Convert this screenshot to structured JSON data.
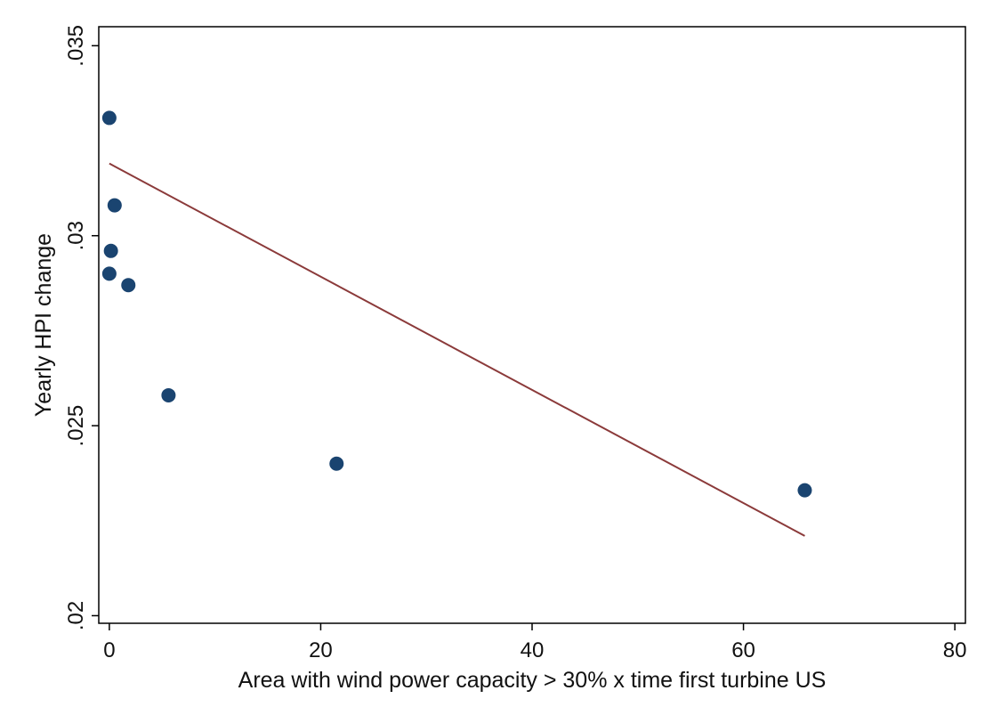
{
  "chart_data": {
    "type": "scatter",
    "title": "",
    "xlabel": "Area with wind power capacity > 30% x time first turbine US",
    "ylabel": "Yearly HPI change",
    "xlim": [
      -1,
      81
    ],
    "ylim": [
      0.0198,
      0.0355
    ],
    "x_ticks": [
      0,
      20,
      40,
      60,
      80
    ],
    "x_tick_labels": [
      "0",
      "20",
      "40",
      "60",
      "80"
    ],
    "y_ticks": [
      0.02,
      0.025,
      0.03,
      0.035
    ],
    "y_tick_labels": [
      ".02",
      ".025",
      ".03",
      ".035"
    ],
    "grid": false,
    "legend": "none",
    "series": [
      {
        "type": "scatter",
        "color": "#1a4470",
        "points": [
          {
            "x": 0.0,
            "y": 0.0331
          },
          {
            "x": 0.5,
            "y": 0.0308
          },
          {
            "x": 0.15,
            "y": 0.0296
          },
          {
            "x": 0.0,
            "y": 0.029
          },
          {
            "x": 1.8,
            "y": 0.0287
          },
          {
            "x": 5.6,
            "y": 0.0258
          },
          {
            "x": 21.5,
            "y": 0.024
          },
          {
            "x": 65.8,
            "y": 0.0233
          }
        ]
      },
      {
        "type": "line",
        "color": "#8b3a3a",
        "points": [
          {
            "x": 0.0,
            "y": 0.0319
          },
          {
            "x": 65.8,
            "y": 0.0221
          }
        ]
      }
    ]
  }
}
